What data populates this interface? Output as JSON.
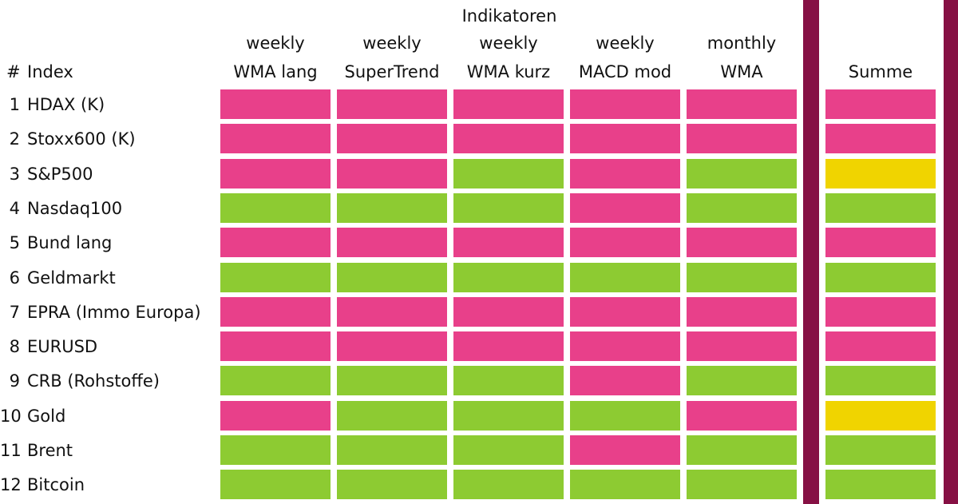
{
  "header": {
    "group_title": "Indikatoren",
    "hash_label": "#",
    "index_label": "Index",
    "columns": [
      {
        "line1": "weekly",
        "line2": "WMA lang"
      },
      {
        "line1": "weekly",
        "line2": "SuperTrend"
      },
      {
        "line1": "weekly",
        "line2": "WMA kurz"
      },
      {
        "line1": "weekly",
        "line2": "MACD mod"
      },
      {
        "line1": "monthly",
        "line2": "WMA"
      }
    ],
    "sum_label": "Summe"
  },
  "colors": {
    "pink": "#E8408A",
    "green": "#8DCB32",
    "yellow": "#F0D400",
    "divider": "#861044"
  },
  "rows": [
    {
      "num": "1",
      "name": "HDAX (K)",
      "signals": [
        "pink",
        "pink",
        "pink",
        "pink",
        "pink"
      ],
      "sum": "pink"
    },
    {
      "num": "2",
      "name": "Stoxx600 (K)",
      "signals": [
        "pink",
        "pink",
        "pink",
        "pink",
        "pink"
      ],
      "sum": "pink"
    },
    {
      "num": "3",
      "name": "S&P500",
      "signals": [
        "pink",
        "pink",
        "green",
        "pink",
        "green"
      ],
      "sum": "yellow"
    },
    {
      "num": "4",
      "name": "Nasdaq100",
      "signals": [
        "green",
        "green",
        "green",
        "pink",
        "green"
      ],
      "sum": "green"
    },
    {
      "num": "5",
      "name": "Bund lang",
      "signals": [
        "pink",
        "pink",
        "pink",
        "pink",
        "pink"
      ],
      "sum": "pink"
    },
    {
      "num": "6",
      "name": "Geldmarkt",
      "signals": [
        "green",
        "green",
        "green",
        "green",
        "green"
      ],
      "sum": "green"
    },
    {
      "num": "7",
      "name": "EPRA (Immo Europa)",
      "signals": [
        "pink",
        "pink",
        "pink",
        "pink",
        "pink"
      ],
      "sum": "pink"
    },
    {
      "num": "8",
      "name": "EURUSD",
      "signals": [
        "pink",
        "pink",
        "pink",
        "pink",
        "pink"
      ],
      "sum": "pink"
    },
    {
      "num": "9",
      "name": "CRB (Rohstoffe)",
      "signals": [
        "green",
        "green",
        "green",
        "pink",
        "green"
      ],
      "sum": "green"
    },
    {
      "num": "10",
      "name": "Gold",
      "signals": [
        "pink",
        "green",
        "green",
        "green",
        "pink"
      ],
      "sum": "yellow"
    },
    {
      "num": "11",
      "name": "Brent",
      "signals": [
        "green",
        "green",
        "green",
        "pink",
        "green"
      ],
      "sum": "green"
    },
    {
      "num": "12",
      "name": "Bitcoin",
      "signals": [
        "green",
        "green",
        "green",
        "green",
        "green"
      ],
      "sum": "green"
    }
  ]
}
